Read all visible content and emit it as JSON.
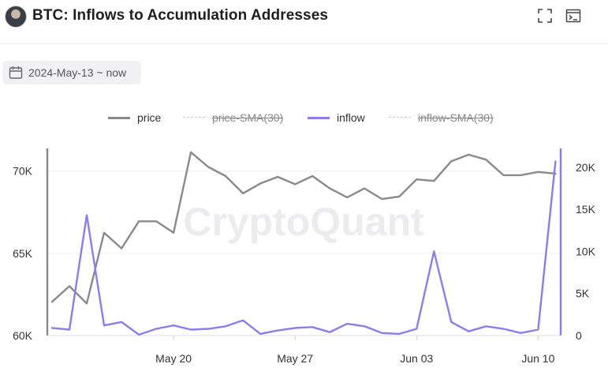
{
  "header": {
    "title": "BTC: Inflows to Accumulation Addresses",
    "fullscreen_icon": "fullscreen-icon",
    "terminal_icon": "terminal-icon"
  },
  "date_filter": {
    "label": "2024-May-13 ~ now",
    "icon": "calendar-icon"
  },
  "legend": [
    {
      "label": "price",
      "color": "#8a8a8e",
      "active": true,
      "style": "solid"
    },
    {
      "label": "price-SMA(30)",
      "color": "#c8c8cc",
      "active": false,
      "style": "dashed"
    },
    {
      "label": "inflow",
      "color": "#8c7cf0",
      "active": true,
      "style": "solid"
    },
    {
      "label": "inflow-SMA(30)",
      "color": "#c8c8cc",
      "active": false,
      "style": "dashed"
    }
  ],
  "watermark": "CryptoQuant",
  "chart_data": {
    "type": "line",
    "x_ticks": [
      "May 20",
      "May 27",
      "Jun 03",
      "Jun 10"
    ],
    "x_tick_days": [
      7,
      14,
      21,
      28
    ],
    "x_range": [
      0,
      29.3
    ],
    "left_axis": {
      "ticks": [
        "60K",
        "65K",
        "70K"
      ],
      "tick_values": [
        60000,
        65000,
        70000
      ],
      "range": [
        60000,
        70900
      ]
    },
    "right_axis": {
      "ticks": [
        "0",
        "5K",
        "10K",
        "15K",
        "20K"
      ],
      "tick_values": [
        0,
        5000,
        10000,
        15000,
        20000
      ],
      "range": [
        0,
        21300
      ]
    },
    "x": [
      0,
      1,
      2,
      3,
      4,
      5,
      6,
      7,
      8,
      9,
      10,
      11,
      12,
      13,
      14,
      15,
      16,
      17,
      18,
      19,
      20,
      21,
      22,
      23,
      24,
      25,
      26,
      27,
      28,
      29
    ],
    "series": [
      {
        "name": "price",
        "axis": "left",
        "color": "#8a8a8e",
        "values": [
          62050,
          63000,
          61950,
          66250,
          65300,
          66950,
          66950,
          66250,
          71150,
          70250,
          69700,
          68650,
          69250,
          69650,
          69200,
          69700,
          68950,
          68400,
          68950,
          68300,
          68450,
          69500,
          69400,
          70600,
          71000,
          70700,
          69750,
          69750,
          69950,
          69850
        ]
      },
      {
        "name": "inflow",
        "axis": "right",
        "color": "#8c7cf0",
        "values": [
          900,
          700,
          14300,
          1200,
          1600,
          100,
          800,
          1200,
          700,
          800,
          1100,
          1800,
          200,
          600,
          900,
          1000,
          400,
          1400,
          1100,
          300,
          200,
          800,
          10000,
          1600,
          500,
          1100,
          800,
          300,
          700,
          20700
        ]
      }
    ]
  }
}
